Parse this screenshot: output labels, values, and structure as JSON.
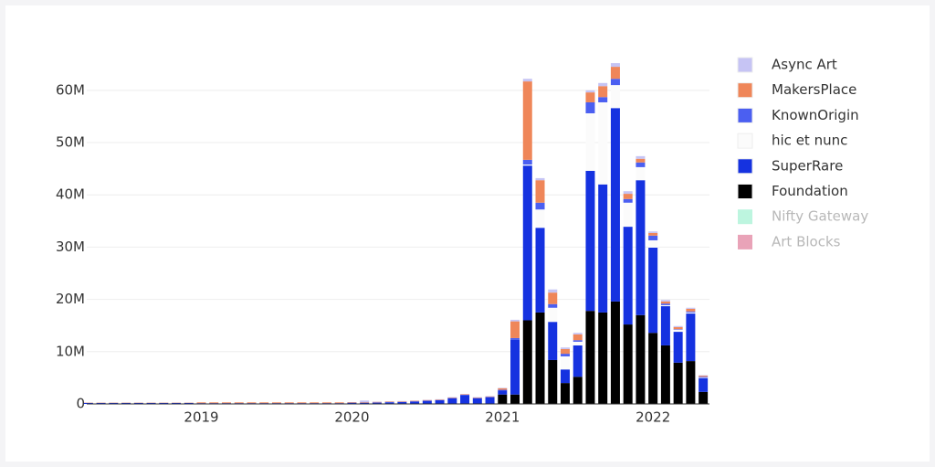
{
  "chart_data": {
    "type": "stacked_bar",
    "categories": [
      null,
      null,
      null,
      null,
      null,
      null,
      null,
      null,
      null,
      "2019",
      null,
      null,
      null,
      null,
      null,
      null,
      null,
      null,
      null,
      null,
      null,
      "2020",
      null,
      null,
      null,
      null,
      null,
      null,
      null,
      null,
      null,
      null,
      null,
      "2021",
      null,
      null,
      null,
      null,
      null,
      null,
      null,
      null,
      null,
      null,
      null,
      "2022",
      null,
      null,
      null,
      null
    ],
    "series": [
      {
        "name": "Async Art",
        "color": "#c6c4f4",
        "values": [
          0,
          0,
          0,
          0,
          0,
          0,
          0,
          0,
          0,
          0,
          0,
          0,
          0,
          0,
          0,
          0,
          0,
          0,
          0,
          0,
          0,
          0,
          300000,
          50000,
          50000,
          50000,
          50000,
          50000,
          50000,
          50000,
          50000,
          50000,
          50000,
          100000,
          300000,
          500000,
          400000,
          600000,
          300000,
          300000,
          400000,
          600000,
          700000,
          500000,
          500000,
          300000,
          300000,
          200000,
          200000,
          100000
        ]
      },
      {
        "name": "MakersPlace",
        "color": "#ef8659",
        "values": [
          50000,
          50000,
          50000,
          50000,
          50000,
          50000,
          50000,
          50000,
          50000,
          150000,
          150000,
          150000,
          150000,
          150000,
          150000,
          150000,
          150000,
          150000,
          150000,
          150000,
          150000,
          100000,
          100000,
          100000,
          100000,
          100000,
          100000,
          100000,
          100000,
          100000,
          100000,
          100000,
          100000,
          300000,
          3200000,
          15000000,
          4300000,
          2200000,
          900000,
          1100000,
          1900000,
          2100000,
          2300000,
          1000000,
          700000,
          500000,
          400000,
          400000,
          500000,
          200000
        ]
      },
      {
        "name": "KnownOrigin",
        "color": "#4b5ff1",
        "values": [
          0,
          0,
          0,
          0,
          0,
          0,
          0,
          0,
          0,
          0,
          0,
          0,
          0,
          0,
          0,
          0,
          0,
          0,
          0,
          0,
          0,
          50000,
          50000,
          50000,
          50000,
          50000,
          50000,
          50000,
          50000,
          50000,
          50000,
          50000,
          50000,
          100000,
          300000,
          900000,
          1300000,
          700000,
          500000,
          300000,
          2100000,
          1000000,
          1200000,
          700000,
          900000,
          900000,
          300000,
          100000,
          200000,
          200000
        ]
      },
      {
        "name": "hic et nunc",
        "color": "#fbfbfb",
        "values": [
          0,
          0,
          0,
          0,
          0,
          0,
          0,
          0,
          0,
          0,
          0,
          0,
          0,
          0,
          0,
          0,
          0,
          0,
          0,
          0,
          0,
          0,
          0,
          0,
          0,
          0,
          0,
          0,
          0,
          0,
          0,
          0,
          0,
          0,
          0,
          200000,
          3500000,
          2700000,
          2500000,
          700000,
          11000000,
          15700000,
          4400000,
          4600000,
          2500000,
          1400000,
          200000,
          400000,
          200000,
          100000
        ]
      },
      {
        "name": "SuperRare",
        "color": "#1532e0",
        "values": [
          200000,
          200000,
          200000,
          200000,
          200000,
          200000,
          200000,
          200000,
          200000,
          150000,
          150000,
          150000,
          150000,
          150000,
          150000,
          150000,
          150000,
          150000,
          150000,
          150000,
          150000,
          200000,
          200000,
          250000,
          300000,
          350000,
          450000,
          600000,
          700000,
          1100000,
          1700000,
          1100000,
          1300000,
          800000,
          10500000,
          29600000,
          16200000,
          7300000,
          2600000,
          6000000,
          26800000,
          24500000,
          37000000,
          18700000,
          25800000,
          16300000,
          7500000,
          5900000,
          9100000,
          2600000
        ]
      },
      {
        "name": "Foundation",
        "color": "#000000",
        "values": [
          0,
          0,
          0,
          0,
          0,
          0,
          0,
          0,
          0,
          0,
          0,
          0,
          0,
          0,
          0,
          0,
          0,
          0,
          0,
          0,
          0,
          0,
          0,
          0,
          0,
          0,
          0,
          0,
          0,
          0,
          0,
          0,
          0,
          1800000,
          1800000,
          16000000,
          17500000,
          8400000,
          4000000,
          5200000,
          17800000,
          17500000,
          19600000,
          15200000,
          17000000,
          13600000,
          11200000,
          7900000,
          8200000,
          2300000
        ]
      }
    ],
    "hidden_series": [
      {
        "name": "Nifty Gateway",
        "color": "#bdf5df"
      },
      {
        "name": "Art Blocks",
        "color": "#e9a3b8"
      }
    ],
    "ylim": [
      0,
      66000000
    ],
    "yticks": [
      0,
      {
        "value": 10000000,
        "label": "10M"
      },
      {
        "value": 20000000,
        "label": "20M"
      },
      {
        "value": 30000000,
        "label": "30M"
      },
      {
        "value": 40000000,
        "label": "40M"
      },
      {
        "value": 50000000,
        "label": "50M"
      },
      {
        "value": 60000000,
        "label": "60M"
      }
    ],
    "grid": true,
    "legend": "right"
  }
}
